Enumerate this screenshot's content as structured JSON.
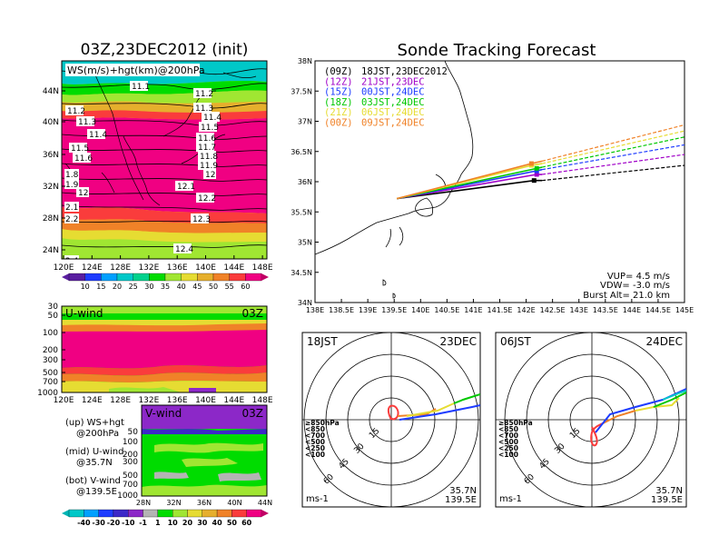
{
  "left": {
    "title": "03Z,23DEC2012 (init)",
    "map": {
      "label": "WS(m/s)+hgt(km)@200hPa",
      "lat_ticks": [
        "44N",
        "40N",
        "36N",
        "32N",
        "28N",
        "24N"
      ],
      "lon_ticks": [
        "120E",
        "124E",
        "128E",
        "132E",
        "136E",
        "140E",
        "144E",
        "148E"
      ],
      "contour_labels": [
        "11.1",
        "11.2",
        "11.2",
        "11.3",
        "11.3",
        "11.4",
        "11.4",
        "11.5",
        "11.5",
        "11.6",
        "11.6",
        "11.7",
        "11.8",
        "11.9",
        "12",
        "12",
        "12.1",
        "12.2",
        "1.8",
        "1.9",
        "2.1",
        "2.2",
        "12.3",
        "12.4",
        "2.4"
      ],
      "colorbar": [
        "10",
        "15",
        "20",
        "25",
        "30",
        "35",
        "40",
        "45",
        "50",
        "55",
        "60"
      ],
      "colorbar_colors": [
        "#1e3cff",
        "#00a0ff",
        "#00c8c8",
        "#00d28c",
        "#00dc00",
        "#a0e632",
        "#e6dc32",
        "#e6af2d",
        "#f08228",
        "#fa3c3c",
        "#f00082"
      ]
    },
    "uwind": {
      "title": "U-wind",
      "time": "03Z",
      "y_ticks": [
        "30",
        "50",
        "100",
        "200",
        "300",
        "500",
        "700",
        "1000"
      ],
      "x_ticks": [
        "120E",
        "124E",
        "128E",
        "132E",
        "136E",
        "140E",
        "144E",
        "148E"
      ]
    },
    "vwind": {
      "title": "V-wind",
      "time": "03Z",
      "y_ticks": [
        "50",
        "100",
        "200",
        "300",
        "500",
        "700",
        "1000"
      ],
      "x_ticks": [
        "28N",
        "32N",
        "36N",
        "40N",
        "44N"
      ],
      "colorbar": [
        "-40",
        "-30",
        "-20",
        "-10",
        "-1",
        "1",
        "10",
        "20",
        "30",
        "40",
        "50",
        "60"
      ],
      "colorbar_colors": [
        "#00c8c8",
        "#00a0ff",
        "#1e3cff",
        "#3c28c8",
        "#8c28c8",
        "#b4b4b4",
        "#00dc00",
        "#a0e632",
        "#e6dc32",
        "#e6af2d",
        "#f08228",
        "#fa3c3c",
        "#f00082"
      ]
    },
    "legend": {
      "line1a": "(up) WS+hgt",
      "line1b": "@200hPa",
      "line2a": "(mid) U-wind",
      "line2b": "@35.7N",
      "line3a": "(bot) V-wind",
      "line3b": "@139.5E"
    }
  },
  "right": {
    "title": "Sonde Tracking Forecast",
    "lat_ticks": [
      "38N",
      "37.5N",
      "37N",
      "36.5N",
      "36N",
      "35.5N",
      "35N",
      "34.5N",
      "34N"
    ],
    "lon_ticks": [
      "138E",
      "138.5E",
      "139E",
      "139.5E",
      "140E",
      "140.5E",
      "141E",
      "141.5E",
      "142E",
      "142.5E",
      "143E",
      "143.5E",
      "144E",
      "144.5E",
      "145E"
    ],
    "runs": [
      {
        "tag": "(09Z)",
        "label": "18JST,23DEC2012",
        "color": "#000000"
      },
      {
        "tag": "(12Z)",
        "label": "21JST,23DEC",
        "color": "#a000c8"
      },
      {
        "tag": "(15Z)",
        "label": "00JST,24DEC",
        "color": "#1e3cff"
      },
      {
        "tag": "(18Z)",
        "label": "03JST,24DEC",
        "color": "#00c800"
      },
      {
        "tag": "(21Z)",
        "label": "06JST,24DEC",
        "color": "#e6dc32"
      },
      {
        "tag": "(00Z)",
        "label": "09JST,24DEC",
        "color": "#f08228"
      }
    ],
    "params": {
      "vup": "VUP= 4.5 m/s",
      "vdw": "VDW= -3.0 m/s",
      "burst": "Burst Alt= 21.0 km"
    }
  },
  "hodo1": {
    "time": "18JST",
    "date": "23DEC",
    "ring_labels": [
      "15",
      "30",
      "45",
      "60"
    ],
    "levels": [
      "≥850hPa",
      "<850",
      "<700",
      "<500",
      "<250",
      "<100"
    ],
    "level_colors": [
      "#fa3c3c",
      "#f08228",
      "#e6dc32",
      "#00c800",
      "#00c8c8",
      "#1e3cff"
    ],
    "units": "ms-1",
    "lat": "35.7N",
    "lon": "139.5E"
  },
  "hodo2": {
    "time": "06JST",
    "date": "24DEC",
    "ring_labels": [
      "15",
      "30",
      "45",
      "60"
    ],
    "levels": [
      "≥850hPa",
      "<850",
      "<700",
      "<500",
      "<250",
      "<100"
    ],
    "level_colors": [
      "#fa3c3c",
      "#f08228",
      "#e6dc32",
      "#00c800",
      "#00c8c8",
      "#1e3cff"
    ],
    "units": "ms-1",
    "lat": "35.7N",
    "lon": "139.5E"
  },
  "chart_data": [
    {
      "type": "line",
      "title": "Sonde Tracking Forecast",
      "xlim": [
        138,
        145
      ],
      "ylim": [
        34,
        38
      ],
      "series": [
        {
          "name": "(09Z) 18JST,23DEC2012",
          "x": [
            139.55,
            142.15,
            142.3,
            145
          ],
          "y": [
            35.72,
            36.02,
            36.02,
            36.27
          ]
        },
        {
          "name": "(12Z) 21JST,23DEC",
          "x": [
            139.55,
            142.2,
            142.3,
            145
          ],
          "y": [
            35.72,
            36.12,
            36.12,
            36.45
          ]
        },
        {
          "name": "(15Z) 00JST,24DEC",
          "x": [
            139.55,
            142.2,
            142.3,
            145
          ],
          "y": [
            35.72,
            36.18,
            36.2,
            36.61
          ]
        },
        {
          "name": "(18Z) 03JST,24DEC",
          "x": [
            139.55,
            142.2,
            142.3,
            145
          ],
          "y": [
            35.72,
            36.22,
            36.24,
            36.74
          ]
        },
        {
          "name": "(21Z) 06JST,24DEC",
          "x": [
            139.55,
            142.1,
            142.3,
            145
          ],
          "y": [
            35.72,
            36.27,
            36.3,
            36.84
          ]
        },
        {
          "name": "(00Z) 09JST,24DEC",
          "x": [
            139.55,
            142.1,
            142.3,
            145
          ],
          "y": [
            35.72,
            36.3,
            36.34,
            36.94
          ]
        }
      ]
    }
  ]
}
